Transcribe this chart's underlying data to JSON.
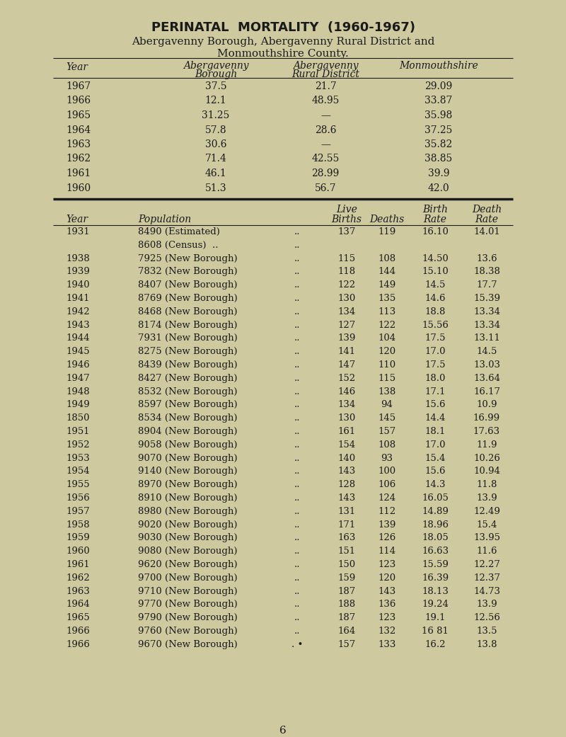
{
  "title1": "PERINATAL  MORTALITY  (1960-1967)",
  "title2": "Abergavenny Borough, Abergavenny Rural District and",
  "title3": "Monmouthshire County.",
  "bg_color": "#cfc9a0",
  "text_color": "#1a1a1a",
  "table1_data": [
    [
      "1967",
      "37.5",
      "21.7",
      "29.09"
    ],
    [
      "1966",
      "12.1",
      "48.95",
      "33.87"
    ],
    [
      "1965",
      "31.25",
      "—",
      "35.98"
    ],
    [
      "1964",
      "57.8",
      "28.6",
      "37.25"
    ],
    [
      "1963",
      "30.6",
      "—",
      "35.82"
    ],
    [
      "1962",
      "71.4",
      "42.55",
      "38.85"
    ],
    [
      "1961",
      "46.1",
      "28.99",
      "39.9"
    ],
    [
      "1960",
      "51.3",
      "56.7",
      "42.0"
    ]
  ],
  "table2_data": [
    [
      "1931",
      "8490 (Estimated)",
      "..",
      "137",
      "119",
      "16.10",
      "14.01"
    ],
    [
      "",
      "8608 (Census)  ..",
      "..",
      "",
      "",
      "",
      ""
    ],
    [
      "1938",
      "7925 (New Borough)",
      "..",
      "115",
      "108",
      "14.50",
      "13.6"
    ],
    [
      "1939",
      "7832 (New Borough)",
      "..",
      "118",
      "144",
      "15.10",
      "18.38"
    ],
    [
      "1940",
      "8407 (New Borough)",
      "..",
      "122",
      "149",
      "14.5",
      "17.7"
    ],
    [
      "1941",
      "8769 (New Borough)",
      "..",
      "130",
      "135",
      "14.6",
      "15.39"
    ],
    [
      "1942",
      "8468 (New Borough)",
      "..",
      "134",
      "113",
      "18.8",
      "13.34"
    ],
    [
      "1943",
      "8174 (New Borough)",
      "..",
      "127",
      "122",
      "15.56",
      "13.34"
    ],
    [
      "1944",
      "7931 (New Borough)",
      "..",
      "139",
      "104",
      "17.5",
      "13.11"
    ],
    [
      "1945",
      "8275 (New Borough)",
      "..",
      "141",
      "120",
      "17.0",
      "14.5"
    ],
    [
      "1946",
      "8439 (New Borough)",
      "..",
      "147",
      "110",
      "17.5",
      "13.03"
    ],
    [
      "1947",
      "8427 (New Borough)",
      "..",
      "152",
      "115",
      "18.0",
      "13.64"
    ],
    [
      "1948",
      "8532 (New Borough)",
      "..",
      "146",
      "138",
      "17.1",
      "16.17"
    ],
    [
      "1949",
      "8597 (New Borough)",
      "..",
      "134",
      "94",
      "15.6",
      "10.9"
    ],
    [
      "1850",
      "8534 (New Borough)",
      "..",
      "130",
      "145",
      "14.4",
      "16.99"
    ],
    [
      "1951",
      "8904 (New Borough)",
      "..",
      "161",
      "157",
      "18.1",
      "17.63"
    ],
    [
      "1952",
      "9058 (New Borough)",
      "..",
      "154",
      "108",
      "17.0",
      "11.9"
    ],
    [
      "1953",
      "9070 (New Borough)",
      "..",
      "140",
      "93",
      "15.4",
      "10.26"
    ],
    [
      "1954",
      "9140 (New Borough)",
      "..",
      "143",
      "100",
      "15.6",
      "10.94"
    ],
    [
      "1955",
      "8970 (New Borough)",
      "..",
      "128",
      "106",
      "14.3",
      "11.8"
    ],
    [
      "1956",
      "8910 (New Borough)",
      "..",
      "143",
      "124",
      "16.05",
      "13.9"
    ],
    [
      "1957",
      "8980 (New Borough)",
      "..",
      "131",
      "112",
      "14.89",
      "12.49"
    ],
    [
      "1958",
      "9020 (New Borough)",
      "..",
      "171",
      "139",
      "18.96",
      "15.4"
    ],
    [
      "1959",
      "9030 (New Borough)",
      "..",
      "163",
      "126",
      "18.05",
      "13.95"
    ],
    [
      "1960",
      "9080 (New Borough)",
      "..",
      "151",
      "114",
      "16.63",
      "11.6"
    ],
    [
      "1961",
      "9620 (New Borough)",
      "..",
      "150",
      "123",
      "15.59",
      "12.27"
    ],
    [
      "1962",
      "9700 (New Borough)",
      "..",
      "159",
      "120",
      "16.39",
      "12.37"
    ],
    [
      "1963",
      "9710 (New Borough)",
      "..",
      "187",
      "143",
      "18.13",
      "14.73"
    ],
    [
      "1964",
      "9770 (New Borough)",
      "..",
      "188",
      "136",
      "19.24",
      "13.9"
    ],
    [
      "1965",
      "9790 (New Borough)",
      "..",
      "187",
      "123",
      "19.1",
      "12.56"
    ],
    [
      "1966",
      "9760 (New Borough)",
      "..",
      "164",
      "132",
      "16 81",
      "13.5"
    ],
    [
      "1966",
      "9670 (New Borough)",
      ". •",
      "157",
      "133",
      "16.2",
      "13.8"
    ]
  ],
  "page_number": "6"
}
